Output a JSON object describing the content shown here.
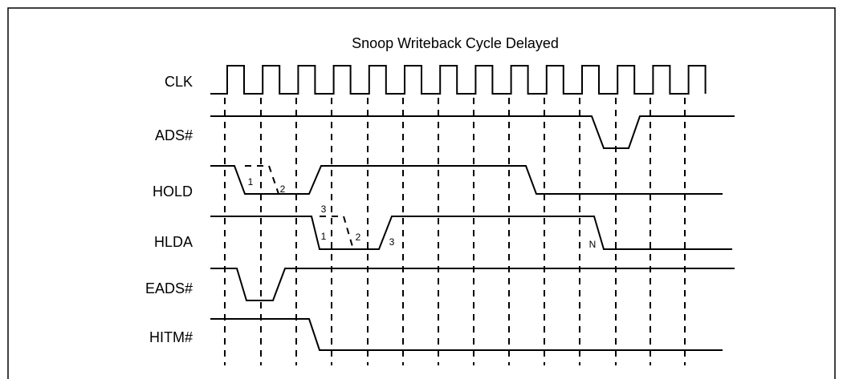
{
  "title": "Snoop Writeback Cycle Delayed",
  "signals": [
    {
      "label": "CLK"
    },
    {
      "label": "ADS#"
    },
    {
      "label": "HOLD"
    },
    {
      "label": "HLDA"
    },
    {
      "label": "EADS#"
    },
    {
      "label": "HITM#"
    }
  ],
  "annotations": [
    "1",
    "2",
    "3",
    "1",
    "2",
    "3",
    "N"
  ]
}
